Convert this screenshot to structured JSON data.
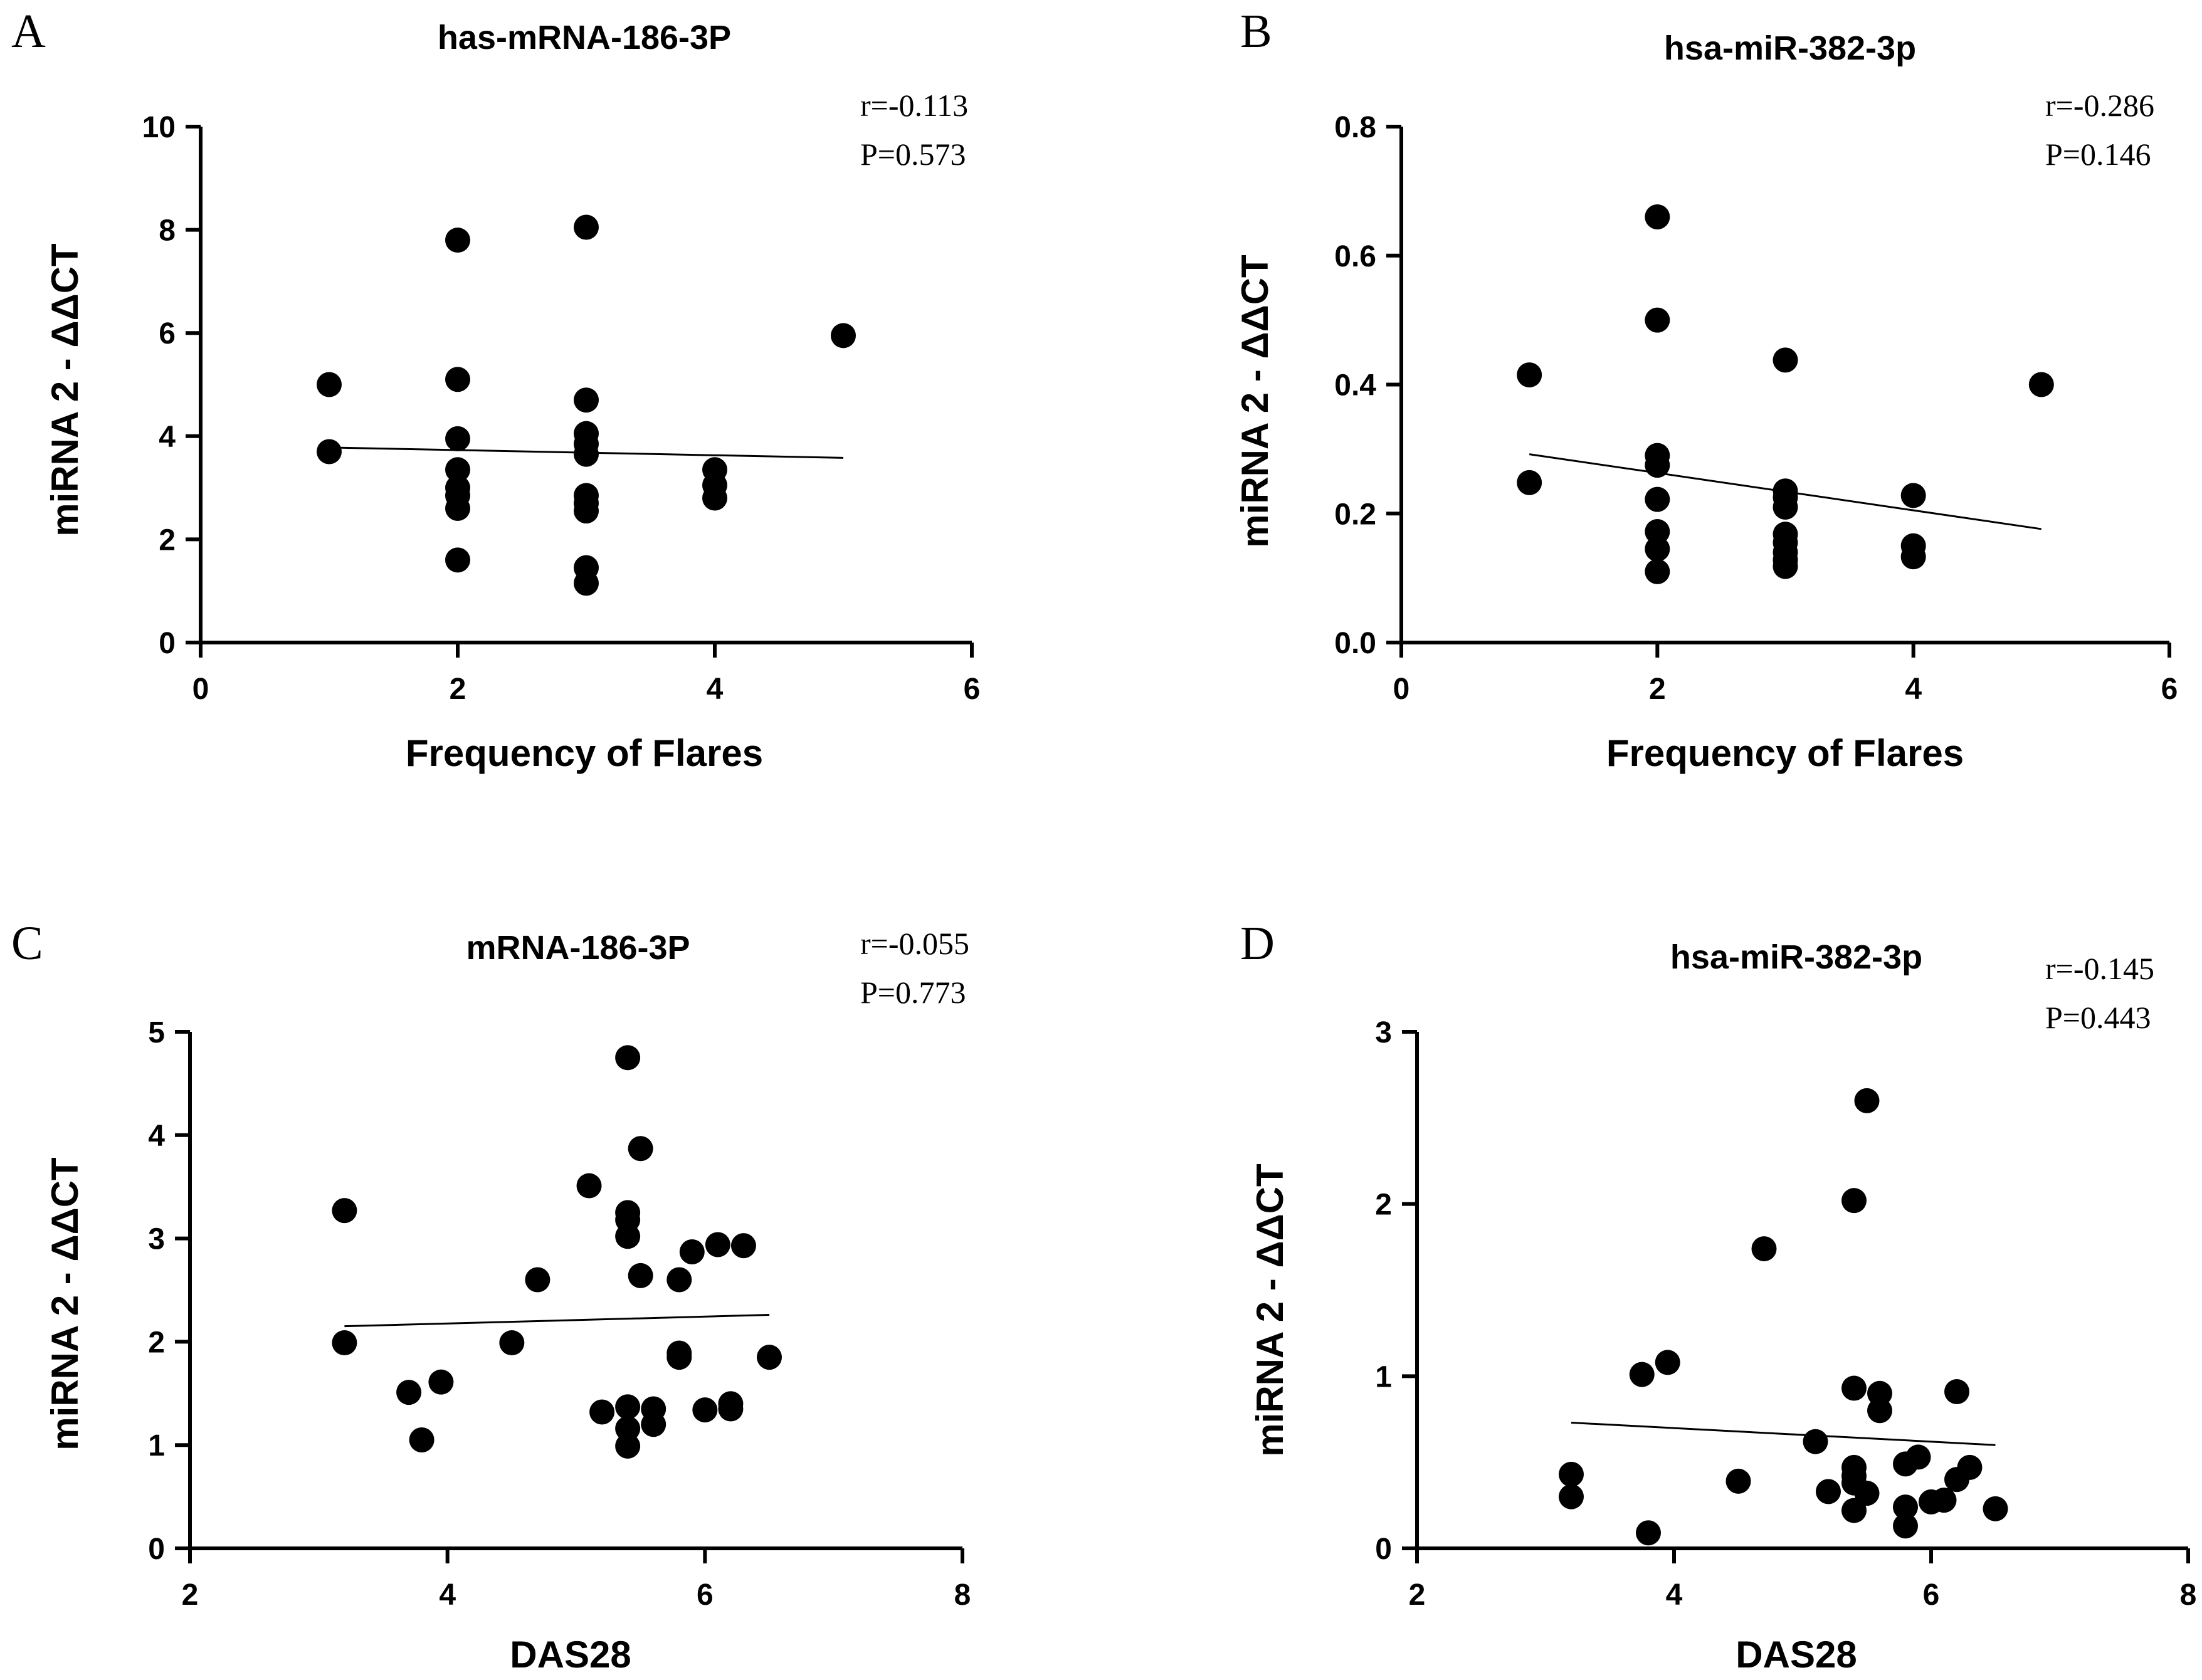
{
  "chart_data": [
    {
      "panel": "A",
      "type": "scatter",
      "title": "has-mRNA-186-3P",
      "xlabel": "Frequency of Flares",
      "ylabel": "miRNA 2 - ΔΔCT",
      "xlim": [
        0,
        6
      ],
      "ylim": [
        0,
        10
      ],
      "xticks": [
        0,
        2,
        4,
        6
      ],
      "yticks": [
        0,
        2,
        4,
        6,
        8,
        10
      ],
      "stats": [
        "r=-0.113",
        "P=0.573"
      ],
      "points": [
        [
          1,
          5.0
        ],
        [
          1,
          3.7
        ],
        [
          2,
          7.8
        ],
        [
          2,
          5.1
        ],
        [
          2,
          3.95
        ],
        [
          2,
          3.35
        ],
        [
          2,
          3.0
        ],
        [
          2,
          2.85
        ],
        [
          2,
          2.6
        ],
        [
          2,
          1.6
        ],
        [
          3,
          8.05
        ],
        [
          3,
          4.7
        ],
        [
          3,
          4.05
        ],
        [
          3,
          3.85
        ],
        [
          3,
          3.65
        ],
        [
          3,
          2.85
        ],
        [
          3,
          2.7
        ],
        [
          3,
          2.55
        ],
        [
          3,
          1.45
        ],
        [
          3,
          1.15
        ],
        [
          4,
          3.35
        ],
        [
          4,
          3.05
        ],
        [
          4,
          2.8
        ],
        [
          5,
          5.95
        ]
      ],
      "fit": [
        [
          1,
          3.78
        ],
        [
          5,
          3.58
        ]
      ]
    },
    {
      "panel": "B",
      "type": "scatter",
      "title": "hsa-miR-382-3p",
      "xlabel": "Frequency of Flares",
      "ylabel": "miRNA 2 - ΔΔCT",
      "xlim": [
        0,
        6
      ],
      "ylim": [
        0,
        0.8
      ],
      "xticks": [
        0,
        2,
        4,
        6
      ],
      "yticks": [
        0.0,
        0.2,
        0.4,
        0.6,
        0.8
      ],
      "stats": [
        "r=-0.286",
        "P=0.146"
      ],
      "points": [
        [
          1,
          0.415
        ],
        [
          1,
          0.248
        ],
        [
          2,
          0.66
        ],
        [
          2,
          0.5
        ],
        [
          2,
          0.29
        ],
        [
          2,
          0.275
        ],
        [
          2,
          0.222
        ],
        [
          2,
          0.172
        ],
        [
          2,
          0.145
        ],
        [
          2,
          0.11
        ],
        [
          3,
          0.438
        ],
        [
          3,
          0.235
        ],
        [
          3,
          0.225
        ],
        [
          3,
          0.21
        ],
        [
          3,
          0.168
        ],
        [
          3,
          0.155
        ],
        [
          3,
          0.14
        ],
        [
          3,
          0.128
        ],
        [
          3,
          0.118
        ],
        [
          4,
          0.228
        ],
        [
          4,
          0.15
        ],
        [
          4,
          0.133
        ],
        [
          5,
          0.4
        ]
      ],
      "fit": [
        [
          1,
          0.292
        ],
        [
          5,
          0.176
        ]
      ]
    },
    {
      "panel": "C",
      "type": "scatter",
      "title": "mRNA-186-3P",
      "xlabel": "DAS28",
      "ylabel": "miRNA 2 - ΔΔCT",
      "xlim": [
        2,
        8
      ],
      "ylim": [
        0,
        5
      ],
      "xticks": [
        2,
        4,
        6,
        8
      ],
      "yticks": [
        0,
        1,
        2,
        3,
        4,
        5
      ],
      "stats": [
        "r=-0.055",
        "P=0.773"
      ],
      "points": [
        [
          3.2,
          3.27
        ],
        [
          3.2,
          1.99
        ],
        [
          3.7,
          1.51
        ],
        [
          3.8,
          1.05
        ],
        [
          3.95,
          1.61
        ],
        [
          4.5,
          1.99
        ],
        [
          4.7,
          2.6
        ],
        [
          5.1,
          3.51
        ],
        [
          5.2,
          1.32
        ],
        [
          5.4,
          4.75
        ],
        [
          5.4,
          3.25
        ],
        [
          5.4,
          3.18
        ],
        [
          5.4,
          3.02
        ],
        [
          5.4,
          1.37
        ],
        [
          5.4,
          1.16
        ],
        [
          5.4,
          0.99
        ],
        [
          5.5,
          3.87
        ],
        [
          5.5,
          2.64
        ],
        [
          5.6,
          1.35
        ],
        [
          5.6,
          1.2
        ],
        [
          5.8,
          2.6
        ],
        [
          5.8,
          1.89
        ],
        [
          5.8,
          1.85
        ],
        [
          5.9,
          2.87
        ],
        [
          6.0,
          1.34
        ],
        [
          6.1,
          2.94
        ],
        [
          6.2,
          1.4
        ],
        [
          6.2,
          1.35
        ],
        [
          6.3,
          2.93
        ],
        [
          6.5,
          1.85
        ]
      ],
      "fit": [
        [
          3.2,
          2.15
        ],
        [
          6.5,
          2.26
        ]
      ]
    },
    {
      "panel": "D",
      "type": "scatter",
      "title": "hsa-miR-382-3p",
      "xlabel": "DAS28",
      "ylabel": "miRNA 2 - ΔΔCT",
      "xlim": [
        2,
        8
      ],
      "ylim": [
        0,
        3
      ],
      "xticks": [
        2,
        4,
        6,
        8
      ],
      "yticks": [
        0,
        1,
        2,
        3
      ],
      "stats": [
        "r=-0.145",
        "P=0.443"
      ],
      "points": [
        [
          3.2,
          0.43
        ],
        [
          3.2,
          0.3
        ],
        [
          3.75,
          1.01
        ],
        [
          3.8,
          0.09
        ],
        [
          3.95,
          1.08
        ],
        [
          4.5,
          0.39
        ],
        [
          4.7,
          1.74
        ],
        [
          5.1,
          0.62
        ],
        [
          5.2,
          0.33
        ],
        [
          5.4,
          2.02
        ],
        [
          5.4,
          0.93
        ],
        [
          5.4,
          0.47
        ],
        [
          5.4,
          0.42
        ],
        [
          5.4,
          0.38
        ],
        [
          5.4,
          0.22
        ],
        [
          5.5,
          2.6
        ],
        [
          5.5,
          0.32
        ],
        [
          5.6,
          0.9
        ],
        [
          5.6,
          0.8
        ],
        [
          5.8,
          0.49
        ],
        [
          5.8,
          0.24
        ],
        [
          5.8,
          0.13
        ],
        [
          5.9,
          0.53
        ],
        [
          6.0,
          0.27
        ],
        [
          6.1,
          0.28
        ],
        [
          6.2,
          0.91
        ],
        [
          6.2,
          0.4
        ],
        [
          6.3,
          0.47
        ],
        [
          6.5,
          0.23
        ]
      ],
      "fit": [
        [
          3.2,
          0.73
        ],
        [
          6.5,
          0.6
        ]
      ]
    }
  ]
}
